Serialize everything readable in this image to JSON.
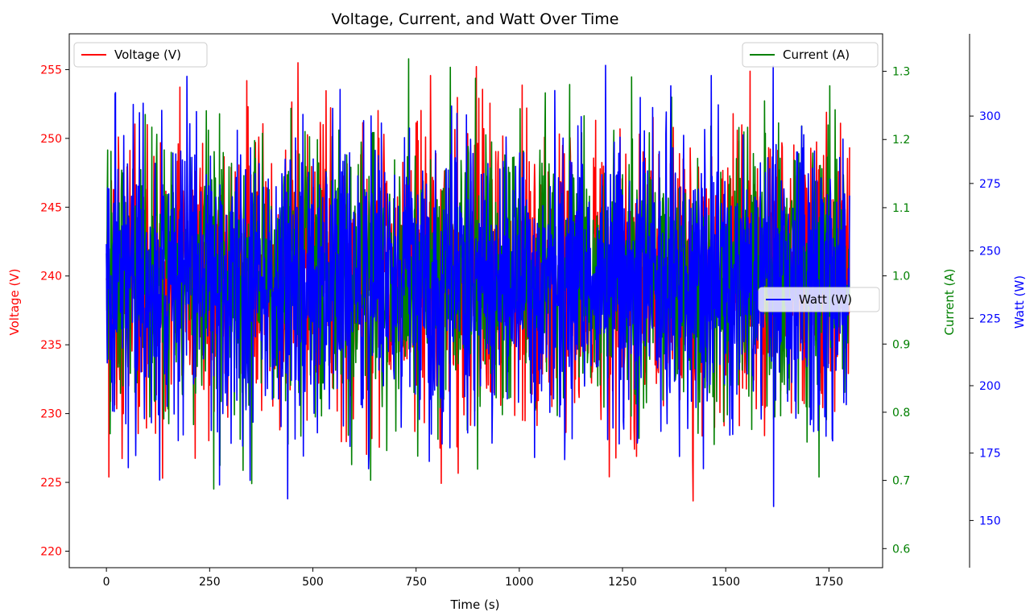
{
  "chart_data": {
    "type": "line",
    "title": "Voltage, Current, and Watt Over Time",
    "xlabel": "Time (s)",
    "xlim": [
      -90,
      1880
    ],
    "xticks": [
      0,
      250,
      500,
      750,
      1000,
      1250,
      1500,
      1750
    ],
    "x_range": [
      0,
      1800
    ],
    "legend": {
      "voltage": "top-left",
      "current": "top-right",
      "watt": "center-right"
    },
    "series": [
      {
        "name": "Voltage (V)",
        "axis_label": "Voltage (V)",
        "color": "#ff0000",
        "axis_side": "left",
        "ylim": [
          218.8,
          257.6
        ],
        "yticks": [
          220,
          225,
          230,
          235,
          240,
          245,
          250,
          255
        ],
        "mean": 240,
        "spread": 5,
        "min": 220.5,
        "max": 256
      },
      {
        "name": "Current (A)",
        "axis_label": "Current (A)",
        "color": "#008000",
        "axis_side": "right",
        "ylim": [
          0.572,
          1.355
        ],
        "yticks": [
          0.6,
          0.7,
          0.8,
          0.9,
          1.0,
          1.1,
          1.2,
          1.3
        ],
        "mean": 1.0,
        "spread": 0.1,
        "min": 0.67,
        "max": 1.32
      },
      {
        "name": "Watt (W)",
        "axis_label": "Watt (W)",
        "color": "#0000ff",
        "axis_side": "right-offset",
        "ylim": [
          132.5,
          330.5
        ],
        "yticks": [
          150,
          175,
          200,
          225,
          250,
          275,
          300
        ],
        "mean": 240,
        "spread": 26,
        "min": 142,
        "max": 319
      }
    ]
  }
}
